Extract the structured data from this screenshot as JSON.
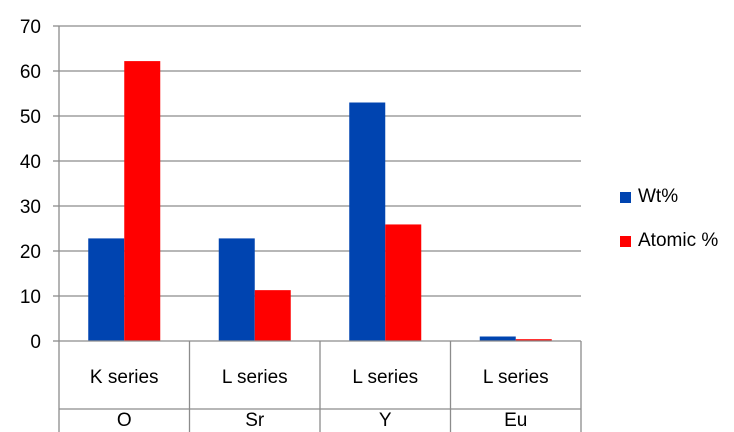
{
  "chart_data": {
    "type": "bar",
    "categories": [
      {
        "series_label": "K series",
        "element": "O"
      },
      {
        "series_label": "L series",
        "element": "Sr"
      },
      {
        "series_label": "L series",
        "element": "Y"
      },
      {
        "series_label": "L series",
        "element": "Eu"
      }
    ],
    "series": [
      {
        "name": "Wt%",
        "color": "#0044b0",
        "values": [
          22.8,
          22.8,
          53.0,
          1.0
        ]
      },
      {
        "name": "Atomic %",
        "color": "#ff0000",
        "values": [
          62.2,
          11.3,
          25.9,
          0.4
        ]
      }
    ],
    "ylim": [
      0,
      70
    ],
    "yticks": [
      0,
      10,
      20,
      30,
      40,
      50,
      60,
      70
    ],
    "grid": true,
    "legend_position": "right"
  }
}
